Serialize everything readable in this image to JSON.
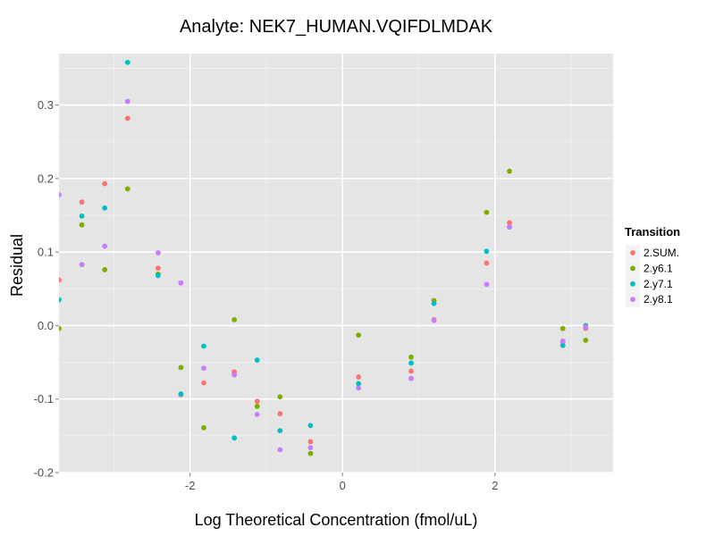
{
  "chart_data": {
    "type": "scatter",
    "title": "Analyte: NEK7_HUMAN.VQIFDLMDAK",
    "xlabel": "Log Theoretical Concentration (fmol/uL)",
    "ylabel": "Residual",
    "xlim": [
      -3.72,
      3.55
    ],
    "ylim": [
      -0.2,
      0.37
    ],
    "x_ticks": [
      -2,
      0,
      2
    ],
    "x_tick_labels": [
      "-2",
      "0",
      "2"
    ],
    "y_ticks": [
      -0.2,
      -0.1,
      0.0,
      0.1,
      0.2,
      0.3
    ],
    "y_tick_labels": [
      "-0.2",
      "-0.1",
      "0.0",
      "0.1",
      "0.2",
      "0.3"
    ],
    "grid": true,
    "legend": {
      "title": "Transition",
      "placement": "right"
    },
    "series": [
      {
        "name": "2.SUM.",
        "color": "#F8766D",
        "points": [
          [
            -3.72,
            0.062
          ],
          [
            -3.42,
            0.168
          ],
          [
            -3.12,
            0.193
          ],
          [
            -2.82,
            0.282
          ],
          [
            -2.42,
            0.078
          ],
          [
            -2.12,
            -0.094
          ],
          [
            -1.82,
            -0.078
          ],
          [
            -1.42,
            -0.063
          ],
          [
            -1.12,
            -0.103
          ],
          [
            -0.82,
            -0.12
          ],
          [
            -0.42,
            -0.158
          ],
          [
            0.21,
            -0.07
          ],
          [
            0.9,
            -0.062
          ],
          [
            1.2,
            0.008
          ],
          [
            1.89,
            0.085
          ],
          [
            2.19,
            0.14
          ],
          [
            2.89,
            -0.022
          ],
          [
            3.19,
            -0.004
          ]
        ]
      },
      {
        "name": "2.y6.1",
        "color": "#7CAE00",
        "points": [
          [
            -3.72,
            -0.004
          ],
          [
            -3.42,
            0.137
          ],
          [
            -3.12,
            0.076
          ],
          [
            -2.82,
            0.186
          ],
          [
            -2.42,
            0.07
          ],
          [
            -2.12,
            -0.057
          ],
          [
            -1.82,
            -0.139
          ],
          [
            -1.42,
            0.008
          ],
          [
            -1.12,
            -0.11
          ],
          [
            -0.82,
            -0.097
          ],
          [
            -0.42,
            -0.174
          ],
          [
            0.21,
            -0.013
          ],
          [
            0.9,
            -0.043
          ],
          [
            1.2,
            0.034
          ],
          [
            1.89,
            0.154
          ],
          [
            2.19,
            0.21
          ],
          [
            2.89,
            -0.004
          ],
          [
            3.19,
            -0.02
          ]
        ]
      },
      {
        "name": "2.y7.1",
        "color": "#00BFC4",
        "points": [
          [
            -3.72,
            0.035
          ],
          [
            -3.42,
            0.149
          ],
          [
            -3.12,
            0.16
          ],
          [
            -2.82,
            0.358
          ],
          [
            -2.42,
            0.068
          ],
          [
            -2.12,
            -0.093
          ],
          [
            -1.82,
            -0.028
          ],
          [
            -1.42,
            -0.153
          ],
          [
            -1.12,
            -0.047
          ],
          [
            -0.82,
            -0.143
          ],
          [
            -0.42,
            -0.136
          ],
          [
            0.21,
            -0.079
          ],
          [
            0.9,
            -0.051
          ],
          [
            1.2,
            0.03
          ],
          [
            1.89,
            0.101
          ],
          [
            2.19,
            0.134
          ],
          [
            2.89,
            -0.027
          ],
          [
            3.19,
            0.0
          ]
        ]
      },
      {
        "name": "2.y8.1",
        "color": "#C77CFF",
        "points": [
          [
            -3.72,
            0.178
          ],
          [
            -3.42,
            0.083
          ],
          [
            -3.12,
            0.108
          ],
          [
            -2.82,
            0.305
          ],
          [
            -2.42,
            0.099
          ],
          [
            -2.12,
            0.058
          ],
          [
            -1.82,
            -0.058
          ],
          [
            -1.42,
            -0.067
          ],
          [
            -1.12,
            -0.121
          ],
          [
            -0.82,
            -0.169
          ],
          [
            -0.42,
            -0.166
          ],
          [
            0.21,
            -0.085
          ],
          [
            0.9,
            -0.072
          ],
          [
            1.2,
            0.007
          ],
          [
            1.89,
            0.056
          ],
          [
            2.19,
            0.134
          ],
          [
            2.89,
            -0.021
          ],
          [
            3.19,
            -0.002
          ]
        ]
      }
    ]
  }
}
